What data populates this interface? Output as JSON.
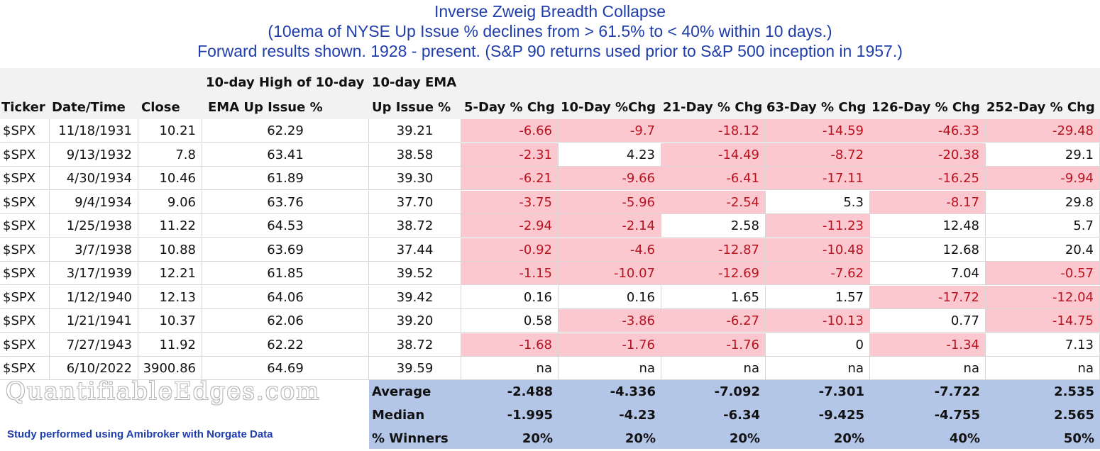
{
  "title": {
    "line1": "Inverse Zweig Breadth Collapse",
    "line2": "(10ema of NYSE Up Issue % declines from > 61.5% to < 40% within 10 days.)",
    "line3": "Forward results shown. 1928 - present. (S&P 90 returns used prior to S&P 500 inception in 1957.)"
  },
  "headers": {
    "ticker": "Ticker",
    "date": "Date/Time",
    "close": "Close",
    "high_ema_line1": "10-day High of 10-day",
    "high_ema_line2": "EMA Up Issue %",
    "ema_line1": "10-day EMA",
    "ema_line2": "Up Issue %",
    "chg5": "5-Day % Chg",
    "chg10": "10-Day %Chg",
    "chg21": "21-Day % Chg",
    "chg63": "63-Day % Chg",
    "chg126": "126-Day % Chg",
    "chg252": "252-Day % Chg"
  },
  "rows": [
    {
      "ticker": "$SPX",
      "date": "11/18/1931",
      "close": "10.21",
      "high": "62.29",
      "ema": "39.21",
      "chg": [
        "-6.66",
        "-9.7",
        "-18.12",
        "-14.59",
        "-46.33",
        "-29.48"
      ]
    },
    {
      "ticker": "$SPX",
      "date": "9/13/1932",
      "close": "7.8",
      "high": "63.41",
      "ema": "38.58",
      "chg": [
        "-2.31",
        "4.23",
        "-14.49",
        "-8.72",
        "-20.38",
        "29.1"
      ]
    },
    {
      "ticker": "$SPX",
      "date": "4/30/1934",
      "close": "10.46",
      "high": "61.89",
      "ema": "39.30",
      "chg": [
        "-6.21",
        "-9.66",
        "-6.41",
        "-17.11",
        "-16.25",
        "-9.94"
      ]
    },
    {
      "ticker": "$SPX",
      "date": "9/4/1934",
      "close": "9.06",
      "high": "63.76",
      "ema": "37.70",
      "chg": [
        "-3.75",
        "-5.96",
        "-2.54",
        "5.3",
        "-8.17",
        "29.8"
      ]
    },
    {
      "ticker": "$SPX",
      "date": "1/25/1938",
      "close": "11.22",
      "high": "64.53",
      "ema": "38.72",
      "chg": [
        "-2.94",
        "-2.14",
        "2.58",
        "-11.23",
        "12.48",
        "5.7"
      ]
    },
    {
      "ticker": "$SPX",
      "date": "3/7/1938",
      "close": "10.88",
      "high": "63.69",
      "ema": "37.44",
      "chg": [
        "-0.92",
        "-4.6",
        "-12.87",
        "-10.48",
        "12.68",
        "20.4"
      ]
    },
    {
      "ticker": "$SPX",
      "date": "3/17/1939",
      "close": "12.21",
      "high": "61.85",
      "ema": "39.52",
      "chg": [
        "-1.15",
        "-10.07",
        "-12.69",
        "-7.62",
        "7.04",
        "-0.57"
      ]
    },
    {
      "ticker": "$SPX",
      "date": "1/12/1940",
      "close": "12.13",
      "high": "64.06",
      "ema": "39.42",
      "chg": [
        "0.16",
        "0.16",
        "1.65",
        "1.57",
        "-17.72",
        "-12.04"
      ]
    },
    {
      "ticker": "$SPX",
      "date": "1/21/1941",
      "close": "10.37",
      "high": "62.06",
      "ema": "39.20",
      "chg": [
        "0.58",
        "-3.86",
        "-6.27",
        "-10.13",
        "0.77",
        "-14.75"
      ]
    },
    {
      "ticker": "$SPX",
      "date": "7/27/1943",
      "close": "11.92",
      "high": "62.22",
      "ema": "38.72",
      "chg": [
        "-1.68",
        "-1.76",
        "-1.76",
        "0",
        "-1.34",
        "7.13"
      ]
    },
    {
      "ticker": "$SPX",
      "date": "6/10/2022",
      "close": "3900.86",
      "high": "64.69",
      "ema": "39.59",
      "chg": [
        "na",
        "na",
        "na",
        "na",
        "na",
        "na"
      ]
    }
  ],
  "summary": [
    {
      "label": "Average",
      "values": [
        "-2.488",
        "-4.336",
        "-7.092",
        "-7.301",
        "-7.722",
        "2.535"
      ]
    },
    {
      "label": "Median",
      "values": [
        "-1.995",
        "-4.23",
        "-6.34",
        "-9.425",
        "-4.755",
        "2.565"
      ]
    },
    {
      "label": "% Winners",
      "values": [
        "20%",
        "20%",
        "20%",
        "20%",
        "40%",
        "50%"
      ]
    }
  ],
  "watermark": "QuantifiableEdges.com",
  "footnote": "Study performed using Amibroker with Norgate Data",
  "colors": {
    "title_blue": "#1f3dab",
    "negative_fill": "#fbc8d0",
    "negative_text": "#b8131e",
    "summary_fill": "#b4c6e7",
    "header_fill": "#f2f2f2"
  }
}
